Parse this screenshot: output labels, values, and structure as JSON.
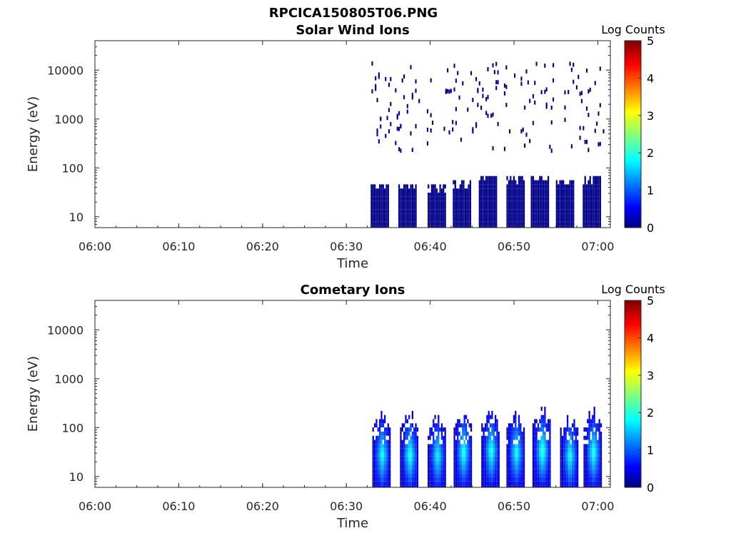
{
  "figure": {
    "filename": "RPCICA150805T06.PNG"
  },
  "colormap_stops": [
    "#00007f",
    "#0000ff",
    "#00ffff",
    "#ffff00",
    "#ff0000",
    "#7f0000"
  ],
  "chart_data": [
    {
      "type": "heatmap",
      "title": "Solar Wind Ions",
      "xlabel": "Time",
      "ylabel": "Energy (eV)",
      "x_ticks": [
        "06:00",
        "06:10",
        "06:20",
        "06:30",
        "06:40",
        "06:50",
        "07:00"
      ],
      "x_tick_minutes": [
        0,
        10,
        20,
        30,
        40,
        50,
        60
      ],
      "xlim_minutes": [
        0,
        61.5
      ],
      "y_scale": "log",
      "ylim": [
        6,
        40000
      ],
      "y_ticks": [
        "10",
        "100",
        "1000",
        "10000"
      ],
      "y_tick_values": [
        10,
        100,
        1000,
        10000
      ],
      "colorbar": {
        "label": "Log Counts",
        "range": [
          0,
          5
        ],
        "ticks": [
          "0",
          "1",
          "2",
          "3",
          "4",
          "5"
        ]
      },
      "data_start_minutes": 32.8,
      "bursts": [
        {
          "t": 34.0,
          "e": 20,
          "level": 0.25
        },
        {
          "t": 37.3,
          "e": 20,
          "level": 0.3
        },
        {
          "t": 40.8,
          "e": 18,
          "level": 0.2
        },
        {
          "t": 43.8,
          "e": 22,
          "level": 0.25
        },
        {
          "t": 46.9,
          "e": 30,
          "level": 0.4
        },
        {
          "t": 50.2,
          "e": 28,
          "level": 0.3
        },
        {
          "t": 53.1,
          "e": 30,
          "level": 0.3
        },
        {
          "t": 56.1,
          "e": 24,
          "level": 0.2
        },
        {
          "t": 59.3,
          "e": 28,
          "level": 0.2
        }
      ]
    },
    {
      "type": "heatmap",
      "title": "Cometary Ions",
      "xlabel": "Time",
      "ylabel": "Energy (eV)",
      "x_ticks": [
        "06:00",
        "06:10",
        "06:20",
        "06:30",
        "06:40",
        "06:50",
        "07:00"
      ],
      "x_tick_minutes": [
        0,
        10,
        20,
        30,
        40,
        50,
        60
      ],
      "xlim_minutes": [
        0,
        61.5
      ],
      "y_scale": "log",
      "ylim": [
        6,
        40000
      ],
      "y_ticks": [
        "10",
        "100",
        "1000",
        "10000"
      ],
      "y_tick_values": [
        10,
        100,
        1000,
        10000
      ],
      "colorbar": {
        "label": "Log Counts",
        "range": [
          0,
          5
        ],
        "ticks": [
          "0",
          "1",
          "2",
          "3",
          "4",
          "5"
        ]
      },
      "data_start_minutes": 33.5,
      "bursts": [
        {
          "t": 34.2,
          "e": 25,
          "level": 1.8
        },
        {
          "t": 37.5,
          "e": 25,
          "level": 1.9
        },
        {
          "t": 40.8,
          "e": 24,
          "level": 1.7
        },
        {
          "t": 43.9,
          "e": 28,
          "level": 1.9
        },
        {
          "t": 47.2,
          "e": 30,
          "level": 1.9
        },
        {
          "t": 50.2,
          "e": 28,
          "level": 1.8
        },
        {
          "t": 53.3,
          "e": 30,
          "level": 2.0
        },
        {
          "t": 56.6,
          "e": 24,
          "level": 1.8
        },
        {
          "t": 59.4,
          "e": 28,
          "level": 1.9
        }
      ]
    }
  ]
}
